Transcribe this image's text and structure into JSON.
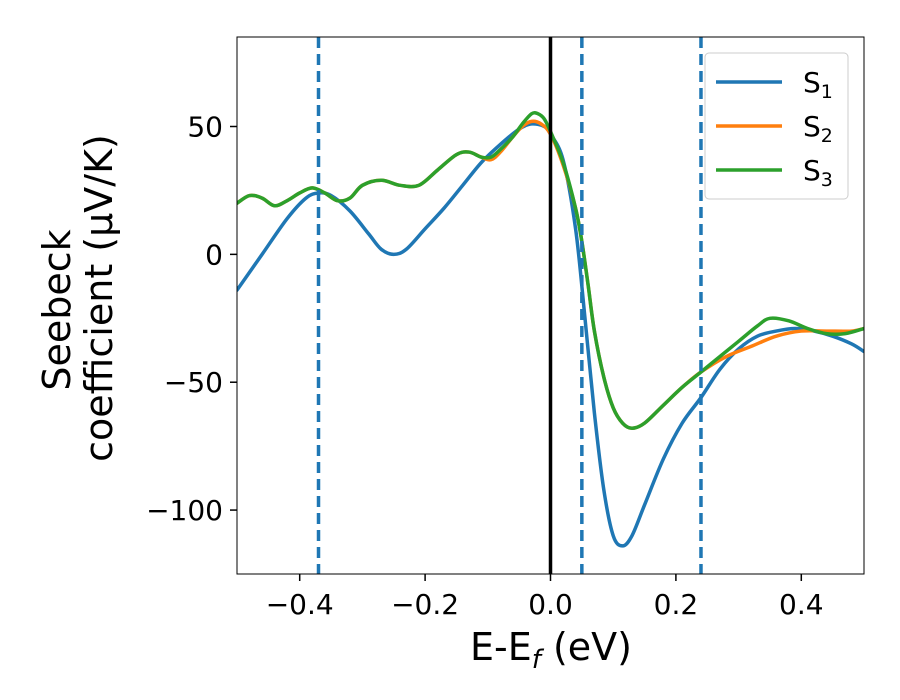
{
  "chart_data": {
    "type": "line",
    "xlabel": {
      "main": "E-E",
      "sub": "f",
      "unit": " (eV)"
    },
    "ylabel": {
      "line1": "Seebeck",
      "line2": "coefficient  (μV/K)"
    },
    "xlim": [
      -0.5,
      0.5
    ],
    "ylim": [
      -125,
      85
    ],
    "xticks": [
      -0.4,
      -0.2,
      0.0,
      0.2,
      0.4
    ],
    "xtick_labels": [
      "−0.4",
      "−0.2",
      "0.0",
      "0.2",
      "0.4"
    ],
    "yticks": [
      50,
      0,
      -50,
      -100
    ],
    "ytick_labels": [
      "50",
      "0",
      "−50",
      "−100"
    ],
    "grid": false,
    "legend_position": "top-right",
    "vlines_dashed": [
      -0.37,
      0.05,
      0.24
    ],
    "vline_solid": 0.0,
    "series": [
      {
        "name": "S",
        "sub": "1",
        "color": "#1f77b4",
        "points": [
          [
            -0.5,
            -14
          ],
          [
            -0.46,
            0
          ],
          [
            -0.42,
            14
          ],
          [
            -0.39,
            22
          ],
          [
            -0.37,
            24
          ],
          [
            -0.35,
            23
          ],
          [
            -0.32,
            17
          ],
          [
            -0.29,
            8
          ],
          [
            -0.27,
            2
          ],
          [
            -0.25,
            0
          ],
          [
            -0.23,
            2
          ],
          [
            -0.2,
            10
          ],
          [
            -0.17,
            18
          ],
          [
            -0.14,
            27
          ],
          [
            -0.11,
            36
          ],
          [
            -0.08,
            43
          ],
          [
            -0.05,
            49
          ],
          [
            -0.03,
            51
          ],
          [
            -0.01,
            50
          ],
          [
            0.0,
            47
          ],
          [
            0.02,
            37
          ],
          [
            0.04,
            10
          ],
          [
            0.055,
            -25
          ],
          [
            0.07,
            -62
          ],
          [
            0.085,
            -92
          ],
          [
            0.1,
            -110
          ],
          [
            0.115,
            -114
          ],
          [
            0.13,
            -110
          ],
          [
            0.15,
            -98
          ],
          [
            0.18,
            -80
          ],
          [
            0.21,
            -66
          ],
          [
            0.24,
            -56
          ],
          [
            0.27,
            -45
          ],
          [
            0.3,
            -37
          ],
          [
            0.33,
            -32
          ],
          [
            0.36,
            -30
          ],
          [
            0.39,
            -29
          ],
          [
            0.42,
            -30
          ],
          [
            0.45,
            -32
          ],
          [
            0.48,
            -35
          ],
          [
            0.5,
            -38
          ]
        ]
      },
      {
        "name": "S",
        "sub": "2",
        "color": "#ff7f0e",
        "points": [
          [
            -0.5,
            20
          ],
          [
            -0.48,
            23
          ],
          [
            -0.46,
            22
          ],
          [
            -0.44,
            19
          ],
          [
            -0.42,
            21
          ],
          [
            -0.4,
            24
          ],
          [
            -0.38,
            26
          ],
          [
            -0.36,
            24
          ],
          [
            -0.34,
            21
          ],
          [
            -0.32,
            22
          ],
          [
            -0.3,
            27
          ],
          [
            -0.27,
            29
          ],
          [
            -0.24,
            27
          ],
          [
            -0.21,
            27
          ],
          [
            -0.18,
            33
          ],
          [
            -0.15,
            39
          ],
          [
            -0.13,
            40
          ],
          [
            -0.11,
            38
          ],
          [
            -0.095,
            37
          ],
          [
            -0.08,
            40
          ],
          [
            -0.06,
            46
          ],
          [
            -0.045,
            50
          ],
          [
            -0.03,
            52
          ],
          [
            -0.015,
            51
          ],
          [
            0.0,
            47
          ],
          [
            0.02,
            35
          ],
          [
            0.04,
            18
          ],
          [
            0.05,
            5
          ],
          [
            0.06,
            -12
          ],
          [
            0.07,
            -30
          ],
          [
            0.085,
            -48
          ],
          [
            0.1,
            -60
          ],
          [
            0.115,
            -66
          ],
          [
            0.13,
            -68
          ],
          [
            0.15,
            -66
          ],
          [
            0.18,
            -59
          ],
          [
            0.21,
            -52
          ],
          [
            0.24,
            -46
          ],
          [
            0.28,
            -40
          ],
          [
            0.32,
            -36
          ],
          [
            0.36,
            -32
          ],
          [
            0.4,
            -30
          ],
          [
            0.44,
            -30
          ],
          [
            0.48,
            -30
          ],
          [
            0.5,
            -29
          ]
        ]
      },
      {
        "name": "S",
        "sub": "3",
        "color": "#2ca02c",
        "points": [
          [
            -0.5,
            20
          ],
          [
            -0.48,
            23
          ],
          [
            -0.46,
            22
          ],
          [
            -0.44,
            19
          ],
          [
            -0.42,
            21
          ],
          [
            -0.4,
            24
          ],
          [
            -0.38,
            26
          ],
          [
            -0.36,
            24
          ],
          [
            -0.34,
            21
          ],
          [
            -0.32,
            22
          ],
          [
            -0.3,
            27
          ],
          [
            -0.27,
            29
          ],
          [
            -0.24,
            27
          ],
          [
            -0.21,
            27
          ],
          [
            -0.18,
            33
          ],
          [
            -0.15,
            39
          ],
          [
            -0.13,
            40
          ],
          [
            -0.11,
            38
          ],
          [
            -0.095,
            38
          ],
          [
            -0.08,
            41
          ],
          [
            -0.06,
            46
          ],
          [
            -0.045,
            51
          ],
          [
            -0.03,
            55
          ],
          [
            -0.02,
            55
          ],
          [
            -0.01,
            53
          ],
          [
            0.0,
            48
          ],
          [
            0.02,
            36
          ],
          [
            0.04,
            18
          ],
          [
            0.05,
            5
          ],
          [
            0.06,
            -12
          ],
          [
            0.07,
            -30
          ],
          [
            0.085,
            -48
          ],
          [
            0.1,
            -60
          ],
          [
            0.115,
            -66
          ],
          [
            0.13,
            -68
          ],
          [
            0.15,
            -66
          ],
          [
            0.18,
            -59
          ],
          [
            0.21,
            -52
          ],
          [
            0.24,
            -46
          ],
          [
            0.27,
            -40
          ],
          [
            0.3,
            -34
          ],
          [
            0.33,
            -28
          ],
          [
            0.35,
            -25
          ],
          [
            0.38,
            -26
          ],
          [
            0.41,
            -29
          ],
          [
            0.44,
            -31
          ],
          [
            0.47,
            -31
          ],
          [
            0.5,
            -29
          ]
        ]
      }
    ]
  }
}
